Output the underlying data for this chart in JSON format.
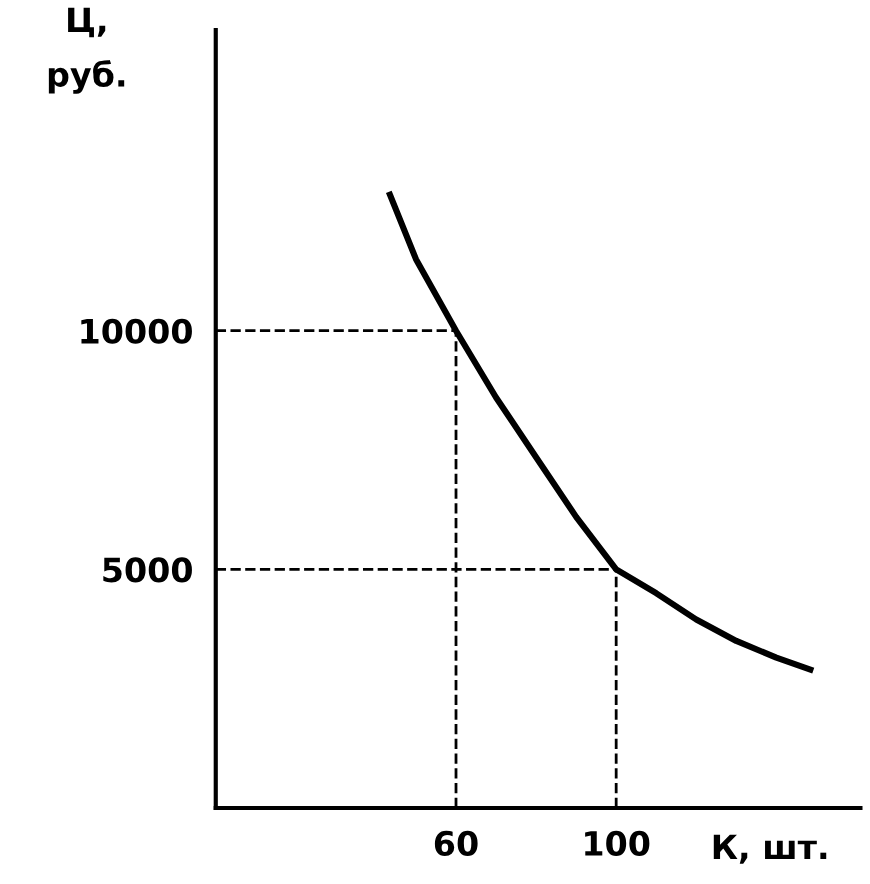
{
  "chart_data": {
    "type": "line",
    "xlabel": "К, шт.",
    "ylabel": "Ц,\nруб.",
    "x": [
      43.5,
      50,
      60,
      70,
      80,
      90,
      100,
      110,
      120,
      130,
      140,
      148.5
    ],
    "series": [
      {
        "color": "#000000",
        "values": [
          12850,
          11500,
          10000,
          8600,
          7350,
          6100,
          5000,
          4500,
          3950,
          3500,
          3150,
          2900
        ]
      }
    ],
    "xlim": [
      0,
      161
    ],
    "ylim": [
      0,
      16300
    ],
    "xticks": [
      60,
      100
    ],
    "yticks": [
      10000,
      5000
    ],
    "ref_lines": [
      {
        "axis": "y",
        "value": 10000,
        "line_style": "dashed",
        "color": "#000000"
      },
      {
        "axis": "y",
        "value": 5000,
        "line_style": "dashed",
        "color": "#000000"
      },
      {
        "axis": "x",
        "value": 60,
        "line_style": "dashed",
        "color": "#000000"
      },
      {
        "axis": "x",
        "value": 100,
        "line_style": "dashed",
        "color": "#000000"
      }
    ],
    "grid": false,
    "marker": "none",
    "line_style": "solid"
  }
}
